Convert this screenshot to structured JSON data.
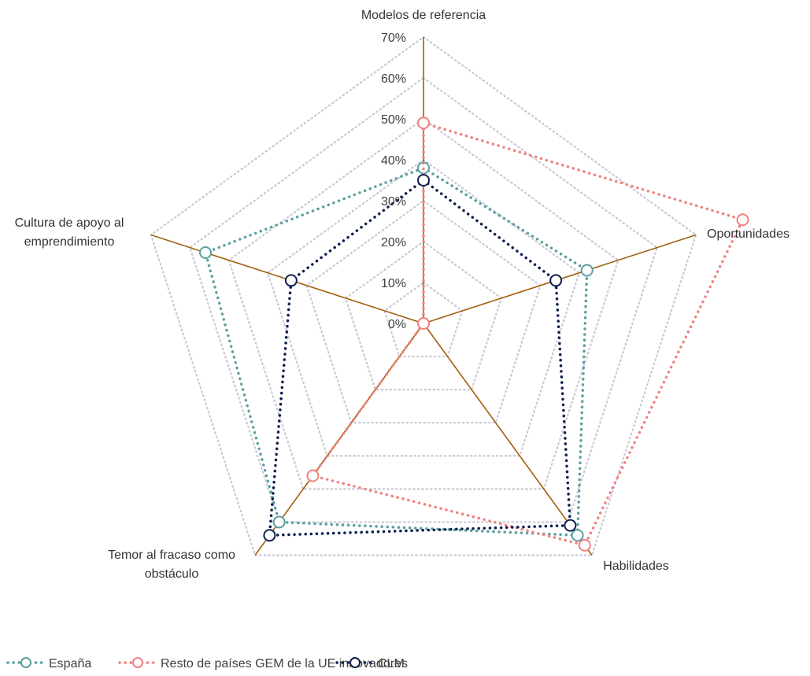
{
  "chart_data": {
    "type": "radar",
    "categories": [
      [
        "Modelos de referencia"
      ],
      [
        "Oportunidades"
      ],
      [
        "Habilidades"
      ],
      [
        "Temor al fracaso como",
        "obstáculo"
      ],
      [
        "Cultura de apoyo al",
        "emprendimiento"
      ]
    ],
    "rlim": [
      0,
      70
    ],
    "ticks": [
      "0%",
      "10%",
      "20%",
      "30%",
      "40%",
      "50%",
      "60%",
      "70%"
    ],
    "tick_values": [
      0,
      10,
      20,
      30,
      40,
      50,
      60,
      70
    ],
    "grid": true,
    "legend_position": "bottom",
    "series": [
      {
        "name": "España",
        "color": "#5a9fa0",
        "values": [
          38,
          42,
          64,
          60,
          56
        ]
      },
      {
        "name": "Resto de países GEM de la UE innovadores",
        "color": "#f08080",
        "values": [
          49,
          82,
          67,
          46,
          0
        ]
      },
      {
        "name": "CLM",
        "color": "#0d1f4f",
        "values": [
          35,
          34,
          61,
          64,
          34
        ]
      }
    ]
  }
}
